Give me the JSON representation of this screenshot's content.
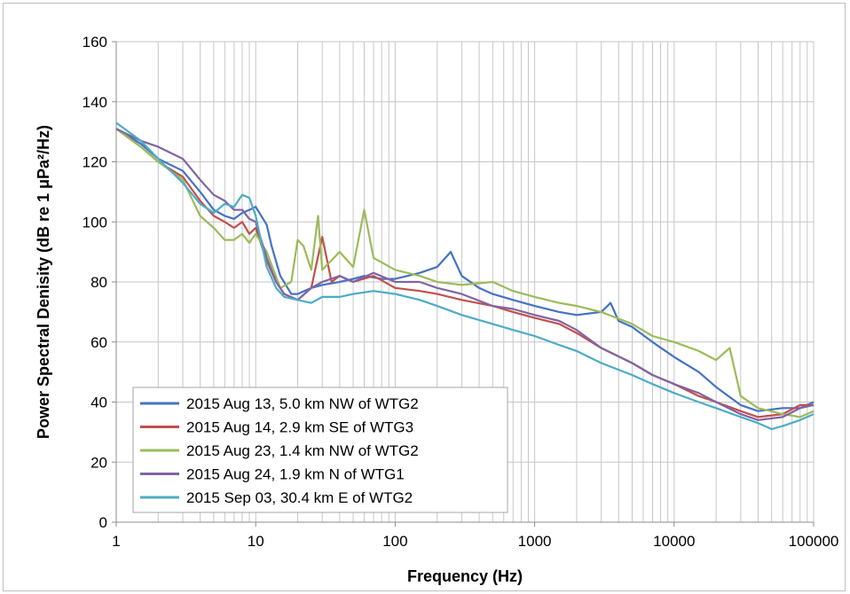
{
  "chart_data": {
    "type": "line",
    "title": "",
    "xlabel": "Frequency (Hz)",
    "ylabel": "Power Spectral Denisity  (dB re 1 μPa²/Hz)",
    "x_scale": "log",
    "xlim": [
      1,
      100000
    ],
    "ylim": [
      0,
      160
    ],
    "x_ticks": [
      "1",
      "10",
      "100",
      "1000",
      "10000",
      "100000"
    ],
    "y_ticks": [
      "0",
      "20",
      "40",
      "60",
      "80",
      "100",
      "120",
      "140",
      "160"
    ],
    "grid": true,
    "legend_position": "bottom-left",
    "series": [
      {
        "name": "2015 Aug 13, 5.0 km NW of WTG2",
        "color": "#4472c4",
        "points": [
          [
            1,
            131
          ],
          [
            1.5,
            126
          ],
          [
            2,
            121
          ],
          [
            3,
            117
          ],
          [
            4,
            110
          ],
          [
            5,
            104
          ],
          [
            6,
            102
          ],
          [
            7,
            101
          ],
          [
            8,
            103
          ],
          [
            9,
            104
          ],
          [
            10,
            105
          ],
          [
            12,
            99
          ],
          [
            13,
            92
          ],
          [
            15,
            82
          ],
          [
            18,
            76
          ],
          [
            20,
            76
          ],
          [
            25,
            78
          ],
          [
            30,
            79
          ],
          [
            40,
            80
          ],
          [
            50,
            81
          ],
          [
            60,
            82
          ],
          [
            80,
            81
          ],
          [
            100,
            81
          ],
          [
            150,
            83
          ],
          [
            200,
            85
          ],
          [
            250,
            90
          ],
          [
            300,
            82
          ],
          [
            400,
            78
          ],
          [
            500,
            76
          ],
          [
            700,
            74
          ],
          [
            1000,
            72
          ],
          [
            1500,
            70
          ],
          [
            2000,
            69
          ],
          [
            3000,
            70
          ],
          [
            3500,
            73
          ],
          [
            4000,
            67
          ],
          [
            5000,
            65
          ],
          [
            7000,
            60
          ],
          [
            10000,
            55
          ],
          [
            15000,
            50
          ],
          [
            20000,
            45
          ],
          [
            30000,
            39
          ],
          [
            40000,
            37
          ],
          [
            60000,
            38
          ],
          [
            80000,
            38
          ],
          [
            100000,
            40
          ]
        ]
      },
      {
        "name": "2015 Aug 14, 2.9 km SE of WTG3",
        "color": "#c0504d",
        "points": [
          [
            1,
            131
          ],
          [
            1.5,
            125
          ],
          [
            2,
            120
          ],
          [
            3,
            115
          ],
          [
            4,
            107
          ],
          [
            5,
            102
          ],
          [
            6,
            100
          ],
          [
            7,
            98
          ],
          [
            8,
            100
          ],
          [
            9,
            96
          ],
          [
            10,
            98
          ],
          [
            12,
            87
          ],
          [
            14,
            80
          ],
          [
            16,
            76
          ],
          [
            20,
            74
          ],
          [
            25,
            78
          ],
          [
            30,
            95
          ],
          [
            35,
            80
          ],
          [
            40,
            82
          ],
          [
            50,
            80
          ],
          [
            70,
            82
          ],
          [
            100,
            78
          ],
          [
            150,
            77
          ],
          [
            200,
            76
          ],
          [
            300,
            74
          ],
          [
            500,
            72
          ],
          [
            700,
            70
          ],
          [
            1000,
            68
          ],
          [
            1500,
            66
          ],
          [
            2000,
            63
          ],
          [
            3000,
            58
          ],
          [
            5000,
            53
          ],
          [
            7000,
            49
          ],
          [
            10000,
            46
          ],
          [
            15000,
            42
          ],
          [
            20000,
            40
          ],
          [
            30000,
            37
          ],
          [
            40000,
            35
          ],
          [
            60000,
            36
          ],
          [
            80000,
            39
          ],
          [
            100000,
            39
          ]
        ]
      },
      {
        "name": "2015 Aug 23, 1.4 km NW of WTG2",
        "color": "#9bbb59",
        "points": [
          [
            1,
            131
          ],
          [
            1.5,
            125
          ],
          [
            2,
            120
          ],
          [
            3,
            114
          ],
          [
            4,
            102
          ],
          [
            5,
            98
          ],
          [
            6,
            94
          ],
          [
            7,
            94
          ],
          [
            8,
            96
          ],
          [
            9,
            93
          ],
          [
            10,
            96
          ],
          [
            12,
            90
          ],
          [
            15,
            78
          ],
          [
            18,
            80
          ],
          [
            20,
            94
          ],
          [
            22,
            92
          ],
          [
            25,
            84
          ],
          [
            28,
            102
          ],
          [
            30,
            84
          ],
          [
            40,
            90
          ],
          [
            50,
            85
          ],
          [
            60,
            104
          ],
          [
            70,
            88
          ],
          [
            100,
            84
          ],
          [
            150,
            82
          ],
          [
            200,
            80
          ],
          [
            300,
            79
          ],
          [
            500,
            80
          ],
          [
            700,
            77
          ],
          [
            1000,
            75
          ],
          [
            1500,
            73
          ],
          [
            2000,
            72
          ],
          [
            3000,
            70
          ],
          [
            5000,
            66
          ],
          [
            7000,
            62
          ],
          [
            10000,
            60
          ],
          [
            15000,
            57
          ],
          [
            20000,
            54
          ],
          [
            25000,
            58
          ],
          [
            30000,
            42
          ],
          [
            40000,
            38
          ],
          [
            60000,
            36
          ],
          [
            80000,
            35
          ],
          [
            100000,
            37
          ]
        ]
      },
      {
        "name": "2015 Aug 24, 1.9 km N of WTG1",
        "color": "#8064a2",
        "points": [
          [
            1,
            131
          ],
          [
            1.5,
            127
          ],
          [
            2,
            125
          ],
          [
            3,
            121
          ],
          [
            4,
            114
          ],
          [
            5,
            109
          ],
          [
            6,
            107
          ],
          [
            7,
            104
          ],
          [
            8,
            104
          ],
          [
            9,
            101
          ],
          [
            10,
            100
          ],
          [
            12,
            88
          ],
          [
            14,
            80
          ],
          [
            16,
            76
          ],
          [
            20,
            74
          ],
          [
            25,
            78
          ],
          [
            30,
            80
          ],
          [
            40,
            82
          ],
          [
            50,
            80
          ],
          [
            70,
            83
          ],
          [
            100,
            80
          ],
          [
            150,
            80
          ],
          [
            200,
            78
          ],
          [
            300,
            76
          ],
          [
            500,
            72
          ],
          [
            700,
            71
          ],
          [
            1000,
            69
          ],
          [
            1500,
            67
          ],
          [
            2000,
            64
          ],
          [
            3000,
            58
          ],
          [
            5000,
            53
          ],
          [
            7000,
            49
          ],
          [
            10000,
            46
          ],
          [
            15000,
            43
          ],
          [
            20000,
            40
          ],
          [
            30000,
            36
          ],
          [
            40000,
            34
          ],
          [
            60000,
            35
          ],
          [
            80000,
            38
          ],
          [
            100000,
            39
          ]
        ]
      },
      {
        "name": "2015 Sep 03, 30.4 km E of WTG2",
        "color": "#4bacc6",
        "points": [
          [
            1,
            133
          ],
          [
            1.5,
            127
          ],
          [
            2,
            121
          ],
          [
            3,
            113
          ],
          [
            4,
            106
          ],
          [
            5,
            103
          ],
          [
            6,
            106
          ],
          [
            7,
            105
          ],
          [
            8,
            109
          ],
          [
            9,
            108
          ],
          [
            10,
            102
          ],
          [
            12,
            85
          ],
          [
            14,
            78
          ],
          [
            16,
            75
          ],
          [
            20,
            74
          ],
          [
            25,
            73
          ],
          [
            30,
            75
          ],
          [
            40,
            75
          ],
          [
            50,
            76
          ],
          [
            70,
            77
          ],
          [
            100,
            76
          ],
          [
            150,
            74
          ],
          [
            200,
            72
          ],
          [
            300,
            69
          ],
          [
            500,
            66
          ],
          [
            700,
            64
          ],
          [
            1000,
            62
          ],
          [
            1500,
            59
          ],
          [
            2000,
            57
          ],
          [
            3000,
            53
          ],
          [
            5000,
            49
          ],
          [
            7000,
            46
          ],
          [
            10000,
            43
          ],
          [
            15000,
            40
          ],
          [
            20000,
            38
          ],
          [
            30000,
            35
          ],
          [
            40000,
            33
          ],
          [
            50000,
            31
          ],
          [
            60000,
            32
          ],
          [
            80000,
            34
          ],
          [
            100000,
            36
          ]
        ]
      }
    ]
  }
}
